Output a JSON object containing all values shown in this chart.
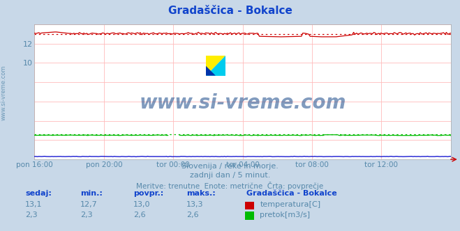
{
  "title": "Gradaščica - Bokalce",
  "title_color": "#1144cc",
  "bg_color": "#c8d8e8",
  "plot_bg_color": "#ffffff",
  "grid_color": "#ffbbbb",
  "n_points": 288,
  "temp_mean": 13.0,
  "temp_min": 12.7,
  "temp_max": 13.3,
  "temp_current": 13.1,
  "flow_mean": 2.6,
  "flow_min": 2.3,
  "flow_max": 2.6,
  "flow_current": 2.3,
  "temp_color": "#cc0000",
  "flow_color": "#00bb00",
  "height_color": "#0000cc",
  "ylim": [
    0,
    14
  ],
  "ytick_vals": [
    10,
    12
  ],
  "ytick_labels": [
    "10",
    "12"
  ],
  "xlabel_ticks": [
    "pon 16:00",
    "pon 20:00",
    "tor 00:00",
    "tor 04:00",
    "tor 08:00",
    "tor 12:00"
  ],
  "subtitle1": "Slovenija / reke in morje.",
  "subtitle2": "zadnji dan / 5 minut.",
  "subtitle3": "Meritve: trenutne  Enote: metrične  Črta: povprečje",
  "legend_title": "Gradaščica - Bokalce",
  "footer_color": "#5588aa",
  "legend_title_color": "#1144cc",
  "watermark_text": "www.si-vreme.com",
  "watermark_color": "#1a4a8a",
  "sidebar_text": "www.si-vreme.com",
  "sidebar_color": "#5588aa",
  "logo_yellow": "#ffee00",
  "logo_cyan": "#00ccee",
  "logo_blue": "#0033aa"
}
